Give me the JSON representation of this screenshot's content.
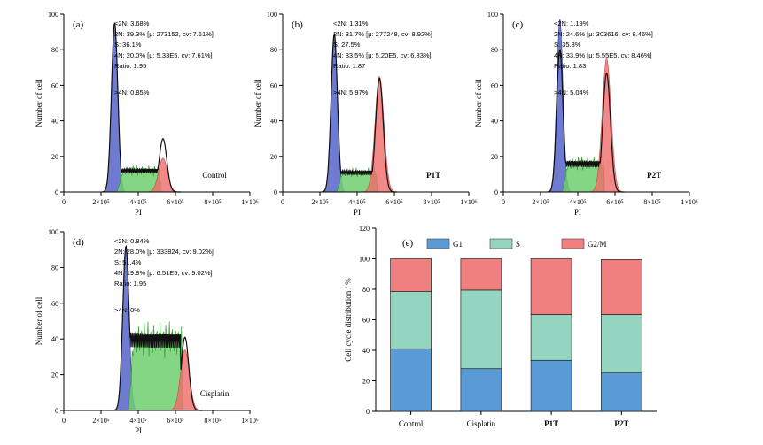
{
  "figure": {
    "colors": {
      "g1": "#5b9bd5",
      "s": "#93d5c0",
      "g2m": "#f08080",
      "green_fill": "#6ecf6e",
      "blue_fill": "#3f4fc0",
      "red_fill": "#f06a6a",
      "curve": "#111111"
    }
  },
  "chart_data": [
    {
      "type": "area",
      "panel": "(a)",
      "label": "Control",
      "xlabel": "PI",
      "ylabel": "Number of cell",
      "xlim": [
        0,
        1000000
      ],
      "ylim": [
        0,
        100
      ],
      "x_ticks": [
        "0",
        "2×10⁵",
        "4×10⁵",
        "6×10⁵",
        "8×10⁵",
        "1×10⁶"
      ],
      "y_ticks": [
        "0",
        "20",
        "40",
        "60",
        "80",
        "100"
      ],
      "stats": [
        "<2N: 3.68%",
        "2N: 39.3%   [μ: 273152, cv: 7.61%]",
        "S: 36.1%",
        "4N: 20.0%   [μ: 5.33E5, cv: 7.61%]",
        "Ratio: 1.95"
      ],
      "over4n": ">4N: 0.85%",
      "g1_peak": {
        "mean": 273152,
        "height": 95
      },
      "g2_peak": {
        "mean": 533000,
        "height": 19
      },
      "s_level": 12,
      "curve_peaks": {
        "g1": 95,
        "g2": 30
      }
    },
    {
      "type": "area",
      "panel": "(b)",
      "label": "P1T",
      "xlabel": "PI",
      "ylabel": "Number of cell",
      "xlim": [
        0,
        1000000
      ],
      "ylim": [
        0,
        100
      ],
      "x_ticks": [
        "0",
        "2×10⁵",
        "4×10⁵",
        "6×10⁵",
        "8×10⁵",
        "1×10⁶"
      ],
      "y_ticks": [
        "0",
        "20",
        "40",
        "60",
        "80",
        "100"
      ],
      "stats": [
        "<2N: 1.31%",
        "2N: 31.7%   [μ: 277248, cv: 8.92%]",
        "S: 27.5%",
        "4N: 33.5%   [μ: 5.20E5, cv: 6.83%]",
        "Ratio: 1.87"
      ],
      "over4n": ">4N: 5.97%",
      "g1_peak": {
        "mean": 277248,
        "height": 88
      },
      "g2_peak": {
        "mean": 520000,
        "height": 65
      },
      "s_level": 11,
      "curve_peaks": {
        "g1": 89,
        "g2": 64
      }
    },
    {
      "type": "area",
      "panel": "(c)",
      "label": "P2T",
      "xlabel": "PI",
      "ylabel": "Number of cell",
      "xlim": [
        0,
        1000000
      ],
      "ylim": [
        0,
        100
      ],
      "x_ticks": [
        "0",
        "2×10⁵",
        "4×10⁵",
        "6×10⁵",
        "8×10⁵",
        "1×10⁶"
      ],
      "y_ticks": [
        "0",
        "20",
        "40",
        "60",
        "80",
        "100"
      ],
      "stats": [
        "<2N: 1.19%",
        "2N: 24.6%   [μ: 303616, cv: 8.46%]",
        "S: 35.3%",
        "4N: 33.9%   [μ: 5.55E5, cv: 8.46%]",
        "Ratio: 1.83"
      ],
      "over4n": ">4N: 5.04%",
      "g1_peak": {
        "mean": 303616,
        "height": 97
      },
      "g2_peak": {
        "mean": 555000,
        "height": 75
      },
      "s_level": 16,
      "curve_peaks": {
        "g1": 80,
        "g2": 67
      }
    },
    {
      "type": "area",
      "panel": "(d)",
      "label": "Cisplatin",
      "xlabel": "PI",
      "ylabel": "Number of cell",
      "xlim": [
        0,
        1000000
      ],
      "ylim": [
        0,
        100
      ],
      "x_ticks": [
        "0",
        "2×10⁵",
        "4×10⁵",
        "6×10⁵",
        "8×10⁵",
        "1×10⁶"
      ],
      "y_ticks": [
        "0",
        "20",
        "40",
        "60",
        "80",
        "100"
      ],
      "stats": [
        "<2N: 0.84%",
        "2N: 28.0%   [μ: 333824, cv: 9.02%]",
        "S: 51.4%",
        "4N: 19.8%   [μ: 6.51E5, cv: 9.02%]",
        "Ratio: 1.95"
      ],
      "over4n": ">4N: 0%",
      "g1_peak": {
        "mean": 333824,
        "height": 92
      },
      "g2_peak": {
        "mean": 651000,
        "height": 34
      },
      "s_level": 40,
      "curve_peaks": {
        "g1": 92,
        "g2": 41
      }
    },
    {
      "type": "bar",
      "panel": "(e)",
      "stacked": true,
      "categories": [
        "Control",
        "Cisplatin",
        "P1T",
        "P2T"
      ],
      "series": [
        {
          "name": "G1",
          "values": [
            41,
            28,
            33.5,
            25.5
          ]
        },
        {
          "name": "S",
          "values": [
            37.5,
            51.5,
            30,
            38
          ]
        },
        {
          "name": "G2/M",
          "values": [
            21.5,
            20.5,
            36.5,
            36
          ]
        }
      ],
      "ylabel": "Cell cycle distribution / %",
      "ylim": [
        0,
        120
      ],
      "y_ticks": [
        "0",
        "20",
        "40",
        "60",
        "80",
        "100",
        "120"
      ],
      "legend": "top",
      "grid": false
    }
  ]
}
